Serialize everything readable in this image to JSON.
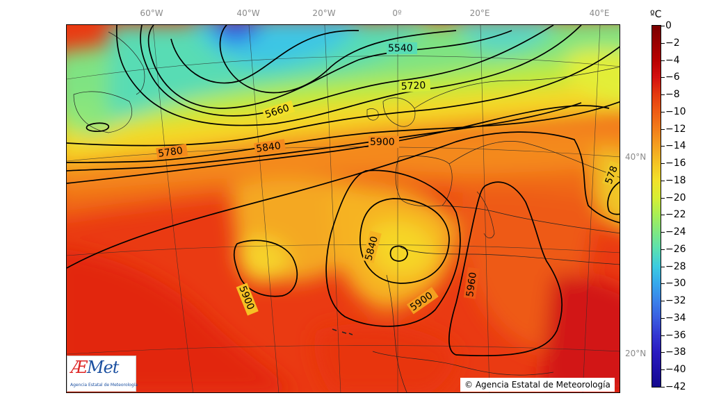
{
  "map": {
    "lon_labels": [
      "60°W",
      "40°W",
      "20°W",
      "0º",
      "20°E",
      "40°E"
    ],
    "lat_labels": [
      "40°N",
      "20°N"
    ],
    "contour_labels": [
      "5540",
      "5720",
      "5660",
      "5780",
      "5840",
      "5900",
      "5840",
      "5900",
      "5900",
      "5960",
      "578"
    ],
    "layers": {
      "field": "temperature",
      "contours": "geopotential height"
    }
  },
  "colorbar": {
    "unit": "ºC",
    "ticks": [
      "0",
      "−2",
      "−4",
      "−6",
      "−8",
      "−10",
      "−12",
      "−14",
      "−16",
      "−18",
      "−20",
      "−22",
      "−24",
      "−26",
      "−28",
      "−30",
      "−32",
      "−34",
      "−36",
      "−38",
      "−40",
      "−42"
    ],
    "colors": [
      "#7a0000",
      "#990000",
      "#b80000",
      "#d41010",
      "#e43a10",
      "#ee5c14",
      "#f27d1a",
      "#f4a020",
      "#f4c324",
      "#f2e12a",
      "#d7ee34",
      "#a8ee55",
      "#7fe882",
      "#5ae0b2",
      "#3ccbe0",
      "#35a8ec",
      "#3b82ea",
      "#3a5de0",
      "#3336d2",
      "#2a1ac0",
      "#1f10a8",
      "#140a8e"
    ]
  },
  "logo": {
    "brand_a": "Æ",
    "brand_b": "Met",
    "subtitle": "Agencia Estatal de Meteorología"
  },
  "copyright": "© Agencia Estatal de Meteorología"
}
